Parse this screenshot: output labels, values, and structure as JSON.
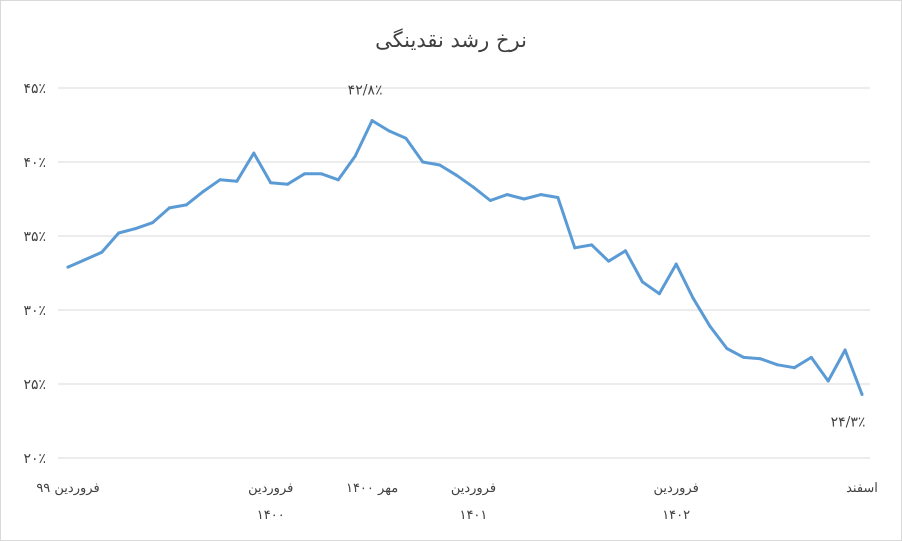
{
  "chart_data": {
    "type": "line",
    "title": "نرخ رشد نقدینگی",
    "xlabel": "",
    "ylabel": "",
    "ylim": [
      20,
      45
    ],
    "grid": "horizontal",
    "legend": "none",
    "y_tick_values": [
      20,
      25,
      30,
      35,
      40,
      45
    ],
    "y_tick_labels": [
      "۲۰٪",
      "۲۵٪",
      "۳۰٪",
      "۳۵٪",
      "۴۰٪",
      "۴۵٪"
    ],
    "x_tick_labels": [
      {
        "index": 0,
        "lines": [
          "فروردین ۹۹"
        ]
      },
      {
        "index": 12,
        "lines": [
          "فروردین",
          "۱۴۰۰"
        ]
      },
      {
        "index": 18,
        "lines": [
          "مهر ۱۴۰۰"
        ]
      },
      {
        "index": 24,
        "lines": [
          "فروردین",
          "۱۴۰۱"
        ]
      },
      {
        "index": 36,
        "lines": [
          "فروردین",
          "۱۴۰۲"
        ]
      },
      {
        "index": 47,
        "lines": [
          "اسفند"
        ]
      }
    ],
    "series": [
      {
        "color": "#5b9bd5",
        "values": [
          32.9,
          33.4,
          33.9,
          35.2,
          35.5,
          35.9,
          36.9,
          37.1,
          38.0,
          38.8,
          38.7,
          40.6,
          38.6,
          38.5,
          39.2,
          39.2,
          38.8,
          40.4,
          42.8,
          42.1,
          41.6,
          40.0,
          39.8,
          39.1,
          38.3,
          37.4,
          37.8,
          37.5,
          37.8,
          37.6,
          34.2,
          34.4,
          33.3,
          34.0,
          31.9,
          31.1,
          33.1,
          30.8,
          28.9,
          27.4,
          26.8,
          26.7,
          26.3,
          26.1,
          26.8,
          25.2,
          27.3,
          24.3
        ]
      }
    ],
    "data_labels": [
      {
        "index": 18,
        "text": "۴۲/۸٪"
      },
      {
        "index": 47,
        "text": "۲۴/۳٪"
      }
    ]
  }
}
